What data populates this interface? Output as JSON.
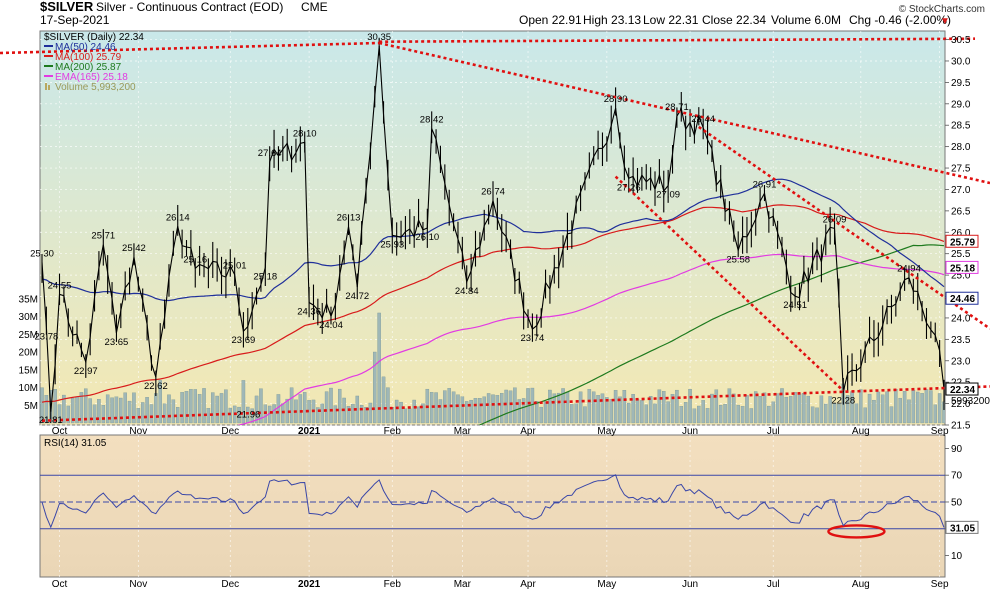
{
  "header": {
    "ticker": "$SILVER",
    "name": "Silver - Continuous Contract (EOD)",
    "exchange": "CME",
    "date": "17-Sep-2021",
    "open": "Open 22.91",
    "high": "High 23.13",
    "low": "Low 22.31",
    "close": "Close 22.34",
    "volume": "Volume 6.0M",
    "chg": "Chg -0.46 (-2.00%)",
    "chg_marker": "▼",
    "watermark": "© StockCharts.com"
  },
  "legend": {
    "price": "$SILVER (Daily) 22.34",
    "ma50": "MA(50) 24.46",
    "ma100": "MA(100) 25.79",
    "ma200": "MA(200) 25.87",
    "ema165": "EMA(165) 25.18",
    "volume": "Volume 5,993,200"
  },
  "rsi_legend": "RSI(14) 31.05",
  "colors": {
    "price": "#000000",
    "ma50": "#1f2f9a",
    "ma100": "#d81b1b",
    "ma200": "#1e7a1e",
    "ema165": "#e23be2",
    "volume": "#9fb7b7",
    "trend": "#e01010",
    "rsi": "#3a47a8"
  },
  "chart_data": [
    {
      "type": "line",
      "title": "$SILVER (Daily) 22.34",
      "x_labels": [
        "Oct",
        "Nov",
        "Dec",
        "2021",
        "Feb",
        "Mar",
        "Apr",
        "May",
        "Jun",
        "Jul",
        "Aug",
        "Sep"
      ],
      "y_ticks": [
        21.5,
        22.0,
        22.5,
        23.0,
        23.5,
        24.0,
        24.5,
        25.0,
        25.5,
        26.0,
        26.5,
        27.0,
        27.5,
        28.0,
        28.5,
        29.0,
        29.5,
        30.0,
        30.5
      ],
      "ylim": [
        21.5,
        30.7
      ],
      "price_labels": [
        {
          "t": 0,
          "v": 25.3,
          "label": "25.30"
        },
        {
          "t": 1,
          "v": 23.78,
          "label": "23.78"
        },
        {
          "t": 4,
          "v": 24.55,
          "label": "24.55"
        },
        {
          "t": 10,
          "v": 22.97,
          "label": "22.97"
        },
        {
          "t": 14,
          "v": 25.71,
          "label": "25.71"
        },
        {
          "t": 17,
          "v": 23.65,
          "label": "23.65"
        },
        {
          "t": 21,
          "v": 25.42,
          "label": "25.42"
        },
        {
          "t": 26,
          "v": 22.62,
          "label": "22.62"
        },
        {
          "t": 31,
          "v": 26.14,
          "label": "26.14"
        },
        {
          "t": 35,
          "v": 25.16,
          "label": "25.16"
        },
        {
          "t": 44,
          "v": 25.01,
          "label": "25.01"
        },
        {
          "t": 46,
          "v": 23.69,
          "label": "23.69"
        },
        {
          "t": 51,
          "v": 25.18,
          "label": "25.18"
        },
        {
          "t": 52,
          "v": 27.64,
          "label": "27.64"
        },
        {
          "t": 60,
          "v": 28.1,
          "label": "28.10"
        },
        {
          "t": 61,
          "v": 24.36,
          "label": "24.36"
        },
        {
          "t": 66,
          "v": 24.04,
          "label": "24.04"
        },
        {
          "t": 70,
          "v": 26.13,
          "label": "26.13"
        },
        {
          "t": 72,
          "v": 24.72,
          "label": "24.72"
        },
        {
          "t": 77,
          "v": 30.35,
          "label": "30.35"
        },
        {
          "t": 80,
          "v": 25.93,
          "label": "25.93"
        },
        {
          "t": 88,
          "v": 26.1,
          "label": "26.10"
        },
        {
          "t": 89,
          "v": 28.42,
          "label": "28.42"
        },
        {
          "t": 97,
          "v": 24.84,
          "label": "24.84"
        },
        {
          "t": 103,
          "v": 26.74,
          "label": "26.74"
        },
        {
          "t": 112,
          "v": 23.74,
          "label": "23.74"
        },
        {
          "t": 131,
          "v": 28.9,
          "label": "28.90"
        },
        {
          "t": 134,
          "v": 27.26,
          "label": "27.26"
        },
        {
          "t": 143,
          "v": 27.09,
          "label": "27.09"
        },
        {
          "t": 145,
          "v": 28.71,
          "label": "28.71"
        },
        {
          "t": 151,
          "v": 28.44,
          "label": "28.44"
        },
        {
          "t": 159,
          "v": 25.58,
          "label": "25.58"
        },
        {
          "t": 165,
          "v": 26.91,
          "label": "26.91"
        },
        {
          "t": 172,
          "v": 24.51,
          "label": "24.51"
        },
        {
          "t": 181,
          "v": 26.09,
          "label": "26.09"
        },
        {
          "t": 183,
          "v": 22.28,
          "label": "22.28"
        },
        {
          "t": 198,
          "v": 24.94,
          "label": "24.94"
        }
      ],
      "left_labels": [
        {
          "v": 21.81,
          "label": "21.81"
        },
        {
          "v": 21.96,
          "label": "21.96"
        }
      ],
      "right_tags": [
        {
          "v": 25.79,
          "label": "25.79",
          "color": "#d81b1b"
        },
        {
          "v": 25.18,
          "label": "25.18",
          "color": "#e23be2"
        },
        {
          "v": 24.46,
          "label": "24.46",
          "color": "#1f2f9a"
        },
        {
          "v": 22.34,
          "label": "22.34",
          "color": "#000000"
        }
      ],
      "volume_ticks": [
        "35M",
        "30M",
        "25M",
        "20M",
        "15M",
        "10M",
        "5M"
      ],
      "volume_tick_values": [
        35,
        30,
        25,
        20,
        15,
        10,
        5
      ],
      "volume_last": "5993200"
    },
    {
      "type": "line",
      "title": "RSI(14) 31.05",
      "y_ticks": [
        10,
        30,
        50,
        70,
        90
      ],
      "ylim": [
        -6,
        100
      ],
      "reference_lines": [
        70,
        50,
        30
      ],
      "last_value": "31.05"
    }
  ]
}
